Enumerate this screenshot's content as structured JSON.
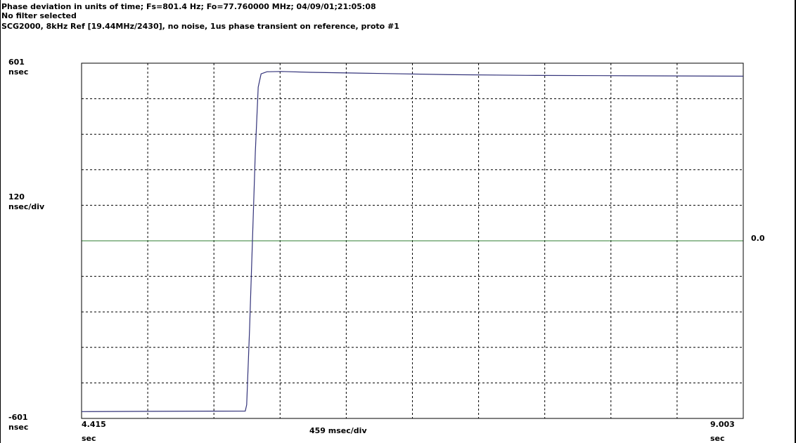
{
  "header": {
    "line1": "Phase deviation in units of time;   Fs=801.4 Hz; Fo=77.760000 MHz; 04/09/01;21:05:08",
    "line2": "No filter selected",
    "line3": "SCG2000, 8kHz Ref [19.44MHz/2430], no noise,  1us phase transient on reference, proto #1"
  },
  "y_axis": {
    "max_value": "601",
    "max_unit": "nsec",
    "per_div_value": "120",
    "per_div_unit": "nsec/div",
    "min_value": "-601",
    "min_unit": "nsec",
    "reference_value": "0.0"
  },
  "x_axis": {
    "min_value": "4.415",
    "min_unit": "sec",
    "per_div": "459 msec/div",
    "max_value": "9.003",
    "max_unit": "sec"
  },
  "colors": {
    "trace": "#33337a",
    "zero_line": "#2e7d32",
    "grid": "#000000",
    "frame": "#000000"
  },
  "chart_data": {
    "type": "line",
    "title": "Phase deviation in units of time;   Fs=801.4 Hz; Fo=77.760000 MHz; 04/09/01;21:05:08",
    "xlabel": "459 msec/div",
    "ylabel": "120 nsec/div",
    "xlim": [
      4.415,
      9.003
    ],
    "ylim": [
      -601,
      601
    ],
    "grid": true,
    "x_divisions": 10,
    "y_divisions": 10,
    "reference_line": 0.0,
    "series": [
      {
        "values": [
          [
            4.415,
            -578
          ],
          [
            4.9,
            -577
          ],
          [
            5.55,
            -576
          ],
          [
            5.56,
            -555
          ],
          [
            5.58,
            -300
          ],
          [
            5.6,
            0
          ],
          [
            5.62,
            300
          ],
          [
            5.64,
            520
          ],
          [
            5.66,
            565
          ],
          [
            5.7,
            572
          ],
          [
            5.8,
            573
          ],
          [
            6.0,
            570
          ],
          [
            6.5,
            566
          ],
          [
            7.0,
            562
          ],
          [
            7.5,
            560
          ],
          [
            8.0,
            559
          ],
          [
            8.5,
            558
          ],
          [
            9.003,
            557
          ]
        ]
      }
    ]
  }
}
